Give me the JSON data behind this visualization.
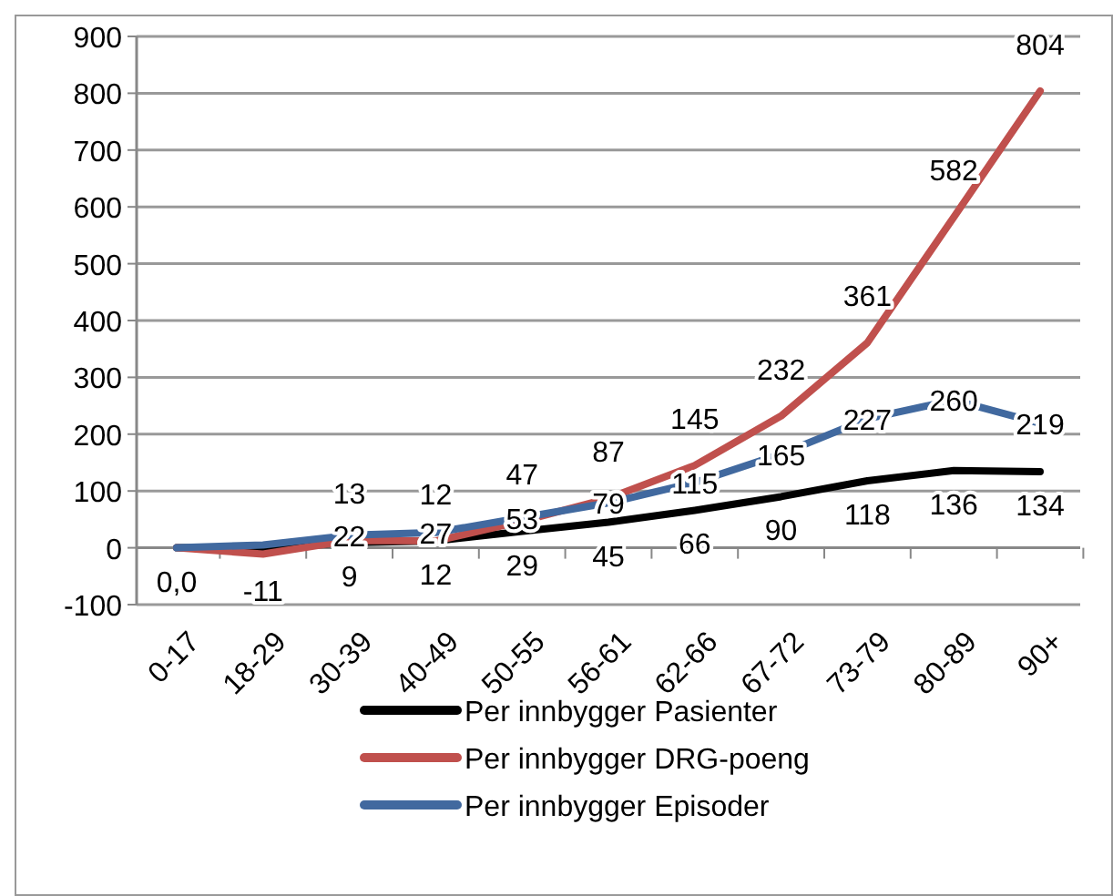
{
  "chart_data": {
    "type": "line",
    "categories": [
      "0-17",
      "18-29",
      "30-39",
      "40-49",
      "50-55",
      "56-61",
      "62-66",
      "67-72",
      "73-79",
      "80-89",
      "90+"
    ],
    "series": [
      {
        "name": "Per innbygger Pasienter",
        "color": "#000000",
        "values": [
          0,
          0,
          9,
          12,
          29,
          45,
          66,
          90,
          118,
          136,
          134
        ],
        "value_labels": [
          "0,0",
          null,
          "9",
          "12",
          "29",
          "45",
          "66",
          "90",
          "118",
          "136",
          "134"
        ]
      },
      {
        "name": "Per innbygger DRG-poeng",
        "color": "#c0504d",
        "values": [
          0,
          -11,
          13,
          12,
          47,
          87,
          145,
          232,
          361,
          582,
          804
        ],
        "value_labels": [
          null,
          "-11",
          "13",
          "12",
          "47",
          "87",
          "145",
          "232",
          "361",
          "582",
          "804"
        ]
      },
      {
        "name": "Per innbygger Episoder",
        "color": "#41699f",
        "values": [
          0,
          5,
          22,
          27,
          53,
          79,
          115,
          165,
          227,
          260,
          219
        ],
        "value_labels": [
          null,
          null,
          "22",
          "27",
          "53",
          "79",
          "115",
          "165",
          "227",
          "260",
          "219"
        ]
      }
    ],
    "ylim": [
      -100,
      900
    ],
    "yticks": [
      -100,
      0,
      100,
      200,
      300,
      400,
      500,
      600,
      700,
      800,
      900
    ],
    "grid": "y",
    "legend": "bottom",
    "marker": "none"
  }
}
